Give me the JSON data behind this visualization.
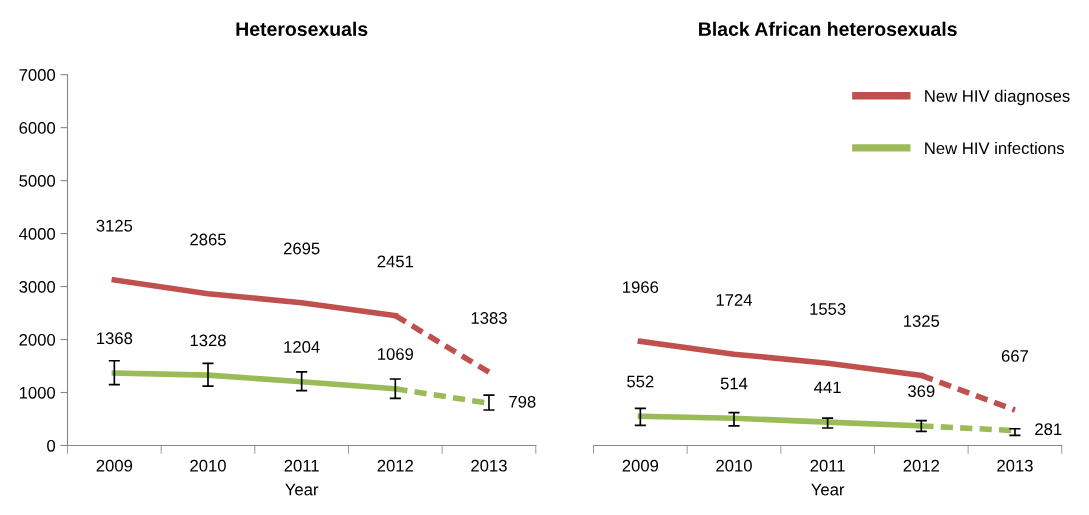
{
  "chart_data": [
    {
      "type": "line",
      "title": "Heterosexuals",
      "xlabel": "Year",
      "categories": [
        "2009",
        "2010",
        "2011",
        "2012",
        "2013"
      ],
      "ylim": [
        0,
        7000
      ],
      "yticks": [
        0,
        1000,
        2000,
        3000,
        4000,
        5000,
        6000,
        7000
      ],
      "grid": false,
      "legend": false,
      "marker": "none",
      "series": [
        {
          "color": "#c0504d",
          "line_style": "solid",
          "values": [
            3125,
            2865,
            2695,
            2451,
            null
          ],
          "value_labels": [
            "3125",
            "2865",
            "2695",
            "2451",
            null
          ]
        },
        {
          "color": "#c0504d",
          "line_style": "dashed",
          "values": [
            null,
            null,
            null,
            2451,
            1383
          ],
          "value_labels": [
            null,
            null,
            null,
            null,
            "1383"
          ]
        },
        {
          "color": "#9bbb59",
          "line_style": "solid",
          "values": [
            1368,
            1328,
            1204,
            1069,
            null
          ],
          "value_labels": [
            "1368",
            "1328",
            "1204",
            "1069",
            null
          ],
          "errors": [
            [
              1150,
              1600
            ],
            [
              1120,
              1550
            ],
            [
              1035,
              1390
            ],
            [
              890,
              1255
            ],
            null
          ]
        },
        {
          "color": "#9bbb59",
          "line_style": "dashed",
          "values": [
            null,
            null,
            null,
            1069,
            798
          ],
          "value_labels": [
            null,
            null,
            null,
            null,
            "798"
          ],
          "errors": [
            null,
            null,
            null,
            null,
            [
              670,
              950
            ]
          ]
        }
      ]
    },
    {
      "type": "line",
      "title": "Black African heterosexuals",
      "xlabel": "Year",
      "categories": [
        "2009",
        "2010",
        "2011",
        "2012",
        "2013"
      ],
      "ylim": [
        0,
        7000
      ],
      "tick_labels": "x",
      "grid": false,
      "legend": "top right",
      "marker": "none",
      "series": [
        {
          "name": "New HIV diagnoses",
          "color": "#c0504d",
          "line_style": "solid",
          "values": [
            1966,
            1724,
            1553,
            1325,
            null
          ],
          "value_labels": [
            "1966",
            "1724",
            "1553",
            "1325",
            null
          ]
        },
        {
          "color": "#c0504d",
          "line_style": "dashed",
          "values": [
            null,
            null,
            null,
            1325,
            667
          ],
          "value_labels": [
            null,
            null,
            null,
            null,
            "667"
          ]
        },
        {
          "name": "New HIV infections",
          "color": "#9bbb59",
          "line_style": "solid",
          "values": [
            552,
            514,
            441,
            369,
            null
          ],
          "value_labels": [
            "552",
            "514",
            "441",
            "369",
            null
          ],
          "errors": [
            [
              380,
              700
            ],
            [
              370,
              620
            ],
            [
              330,
              515
            ],
            [
              265,
              470
            ],
            null
          ]
        },
        {
          "color": "#9bbb59",
          "line_style": "dashed",
          "values": [
            null,
            null,
            null,
            369,
            281
          ],
          "value_labels": [
            null,
            null,
            null,
            null,
            "281"
          ],
          "errors": [
            null,
            null,
            null,
            null,
            [
              190,
              315
            ]
          ]
        }
      ]
    }
  ]
}
